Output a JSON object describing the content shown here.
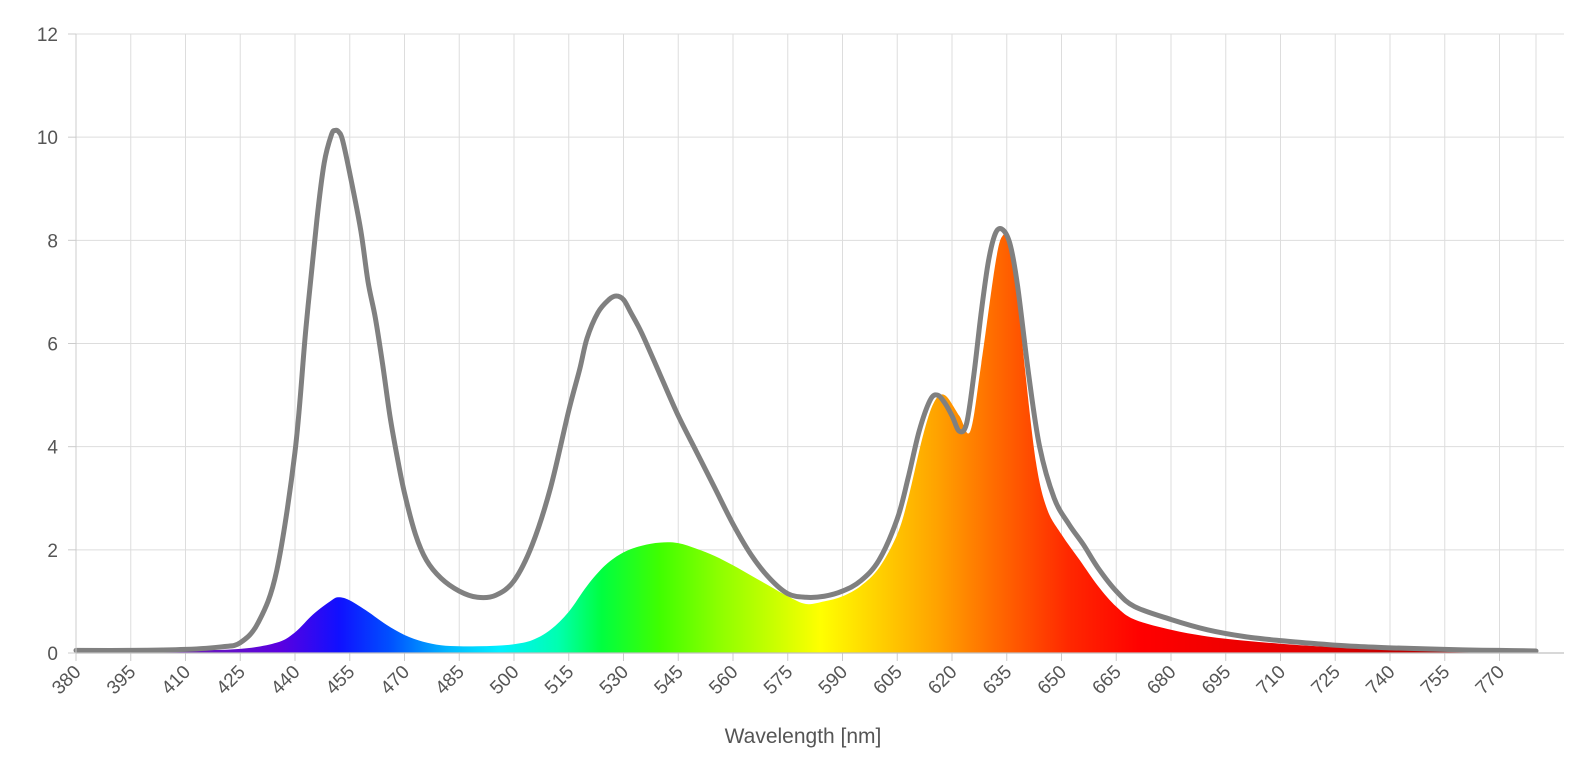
{
  "chart_data": {
    "type": "area",
    "title": "",
    "xlabel": "Wavelength [nm]",
    "ylabel": "",
    "xlim": [
      380,
      780
    ],
    "ylim": [
      0,
      12
    ],
    "grid": true,
    "legend": "none",
    "x_ticks": [
      380,
      395,
      410,
      425,
      440,
      455,
      470,
      485,
      500,
      515,
      530,
      545,
      560,
      575,
      590,
      605,
      620,
      635,
      650,
      665,
      680,
      695,
      710,
      725,
      740,
      755,
      770
    ],
    "y_ticks": [
      0,
      2,
      4,
      6,
      8,
      10,
      12
    ],
    "series": [
      {
        "type": "area",
        "fill": "spectral-gradient",
        "x": [
          380,
          395,
          410,
          425,
          435,
          440,
          445,
          450,
          452,
          455,
          460,
          465,
          470,
          475,
          480,
          485,
          490,
          495,
          500,
          505,
          510,
          515,
          520,
          525,
          530,
          535,
          540,
          545,
          550,
          555,
          560,
          565,
          570,
          575,
          580,
          585,
          590,
          595,
          600,
          605,
          608,
          612,
          615,
          618,
          622,
          625,
          628,
          632,
          634,
          636,
          638,
          640,
          643,
          646,
          650,
          655,
          660,
          665,
          670,
          680,
          690,
          700,
          710,
          720,
          730,
          740,
          750,
          760,
          770,
          780
        ],
        "values": [
          0.03,
          0.04,
          0.05,
          0.08,
          0.2,
          0.4,
          0.75,
          1.02,
          1.08,
          1.02,
          0.8,
          0.55,
          0.35,
          0.22,
          0.15,
          0.13,
          0.13,
          0.14,
          0.17,
          0.25,
          0.45,
          0.8,
          1.3,
          1.7,
          1.95,
          2.08,
          2.14,
          2.13,
          2.02,
          1.88,
          1.7,
          1.5,
          1.3,
          1.1,
          0.95,
          1.0,
          1.1,
          1.3,
          1.65,
          2.3,
          3.0,
          4.2,
          4.85,
          5.0,
          4.6,
          4.3,
          5.6,
          7.6,
          8.1,
          8.0,
          7.0,
          5.5,
          3.7,
          2.8,
          2.3,
          1.8,
          1.3,
          0.9,
          0.65,
          0.45,
          0.32,
          0.24,
          0.18,
          0.13,
          0.1,
          0.08,
          0.06,
          0.05,
          0.05,
          0.04
        ]
      },
      {
        "type": "line",
        "color": "#808080",
        "x": [
          380,
          395,
          410,
          420,
          425,
          430,
          435,
          440,
          443,
          446,
          448,
          450,
          451,
          452,
          453,
          455,
          458,
          460,
          462,
          464,
          466,
          468,
          470,
          473,
          476,
          480,
          485,
          490,
          495,
          500,
          505,
          510,
          515,
          518,
          520,
          523,
          526,
          528,
          530,
          532,
          535,
          540,
          545,
          550,
          555,
          560,
          565,
          570,
          575,
          580,
          585,
          590,
          595,
          600,
          605,
          608,
          611,
          614,
          616,
          618,
          620,
          622,
          624,
          626,
          628,
          630,
          632,
          634,
          636,
          638,
          641,
          644,
          648,
          652,
          656,
          660,
          665,
          670,
          680,
          690,
          700,
          710,
          720,
          730,
          740,
          750,
          760,
          770,
          780
        ],
        "values": [
          0.05,
          0.05,
          0.07,
          0.12,
          0.2,
          0.6,
          1.6,
          3.9,
          6.3,
          8.4,
          9.5,
          10.05,
          10.13,
          10.1,
          9.95,
          9.3,
          8.2,
          7.2,
          6.5,
          5.6,
          4.6,
          3.8,
          3.1,
          2.3,
          1.8,
          1.45,
          1.2,
          1.08,
          1.12,
          1.4,
          2.1,
          3.2,
          4.7,
          5.5,
          6.1,
          6.6,
          6.85,
          6.92,
          6.85,
          6.6,
          6.2,
          5.4,
          4.6,
          3.9,
          3.2,
          2.5,
          1.9,
          1.45,
          1.15,
          1.08,
          1.1,
          1.2,
          1.4,
          1.8,
          2.6,
          3.4,
          4.3,
          4.9,
          5.0,
          4.85,
          4.6,
          4.3,
          4.45,
          5.4,
          6.6,
          7.6,
          8.15,
          8.2,
          7.9,
          7.1,
          5.4,
          4.0,
          3.0,
          2.5,
          2.1,
          1.65,
          1.2,
          0.9,
          0.65,
          0.45,
          0.32,
          0.24,
          0.18,
          0.13,
          0.1,
          0.08,
          0.06,
          0.05,
          0.04
        ]
      }
    ]
  }
}
